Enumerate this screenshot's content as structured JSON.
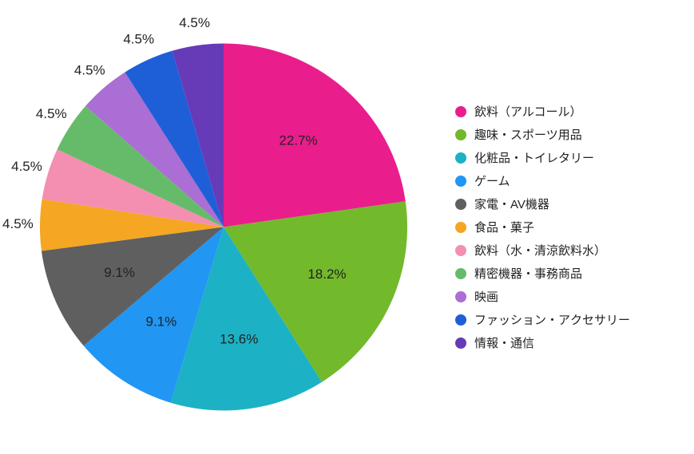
{
  "chart": {
    "type": "pie",
    "background_color": "#ffffff",
    "label_fontsize": 17,
    "legend_fontsize": 15,
    "label_color": "#222222",
    "radius": 230,
    "start_angle_deg": -90,
    "slices": [
      {
        "label": "飲料（アルコール）",
        "value": 22.7,
        "pct_text": "22.7%",
        "color": "#e91e8c"
      },
      {
        "label": "趣味・スポーツ用品",
        "value": 18.2,
        "pct_text": "18.2%",
        "color": "#72b92c"
      },
      {
        "label": "化粧品・トイレタリー",
        "value": 13.6,
        "pct_text": "13.6%",
        "color": "#1cb1c4"
      },
      {
        "label": "ゲーム",
        "value": 9.1,
        "pct_text": "9.1%",
        "color": "#2196f3"
      },
      {
        "label": "家電・AV機器",
        "value": 9.1,
        "pct_text": "9.1%",
        "color": "#5f5f5f"
      },
      {
        "label": "食品・菓子",
        "value": 4.5,
        "pct_text": "4.5%",
        "color": "#f5a623"
      },
      {
        "label": "飲料（水・清涼飲料水）",
        "value": 4.5,
        "pct_text": "4.5%",
        "color": "#f48fb1"
      },
      {
        "label": "精密機器・事務商品",
        "value": 4.5,
        "pct_text": "4.5%",
        "color": "#66bb6a"
      },
      {
        "label": "映画",
        "value": 4.5,
        "pct_text": "4.5%",
        "color": "#ab6ed4"
      },
      {
        "label": "ファッション・アクセサリー",
        "value": 4.5,
        "pct_text": "4.5%",
        "color": "#1e5fd8"
      },
      {
        "label": "情報・通信",
        "value": 4.5,
        "pct_text": "4.5%",
        "color": "#673ab7"
      }
    ]
  }
}
